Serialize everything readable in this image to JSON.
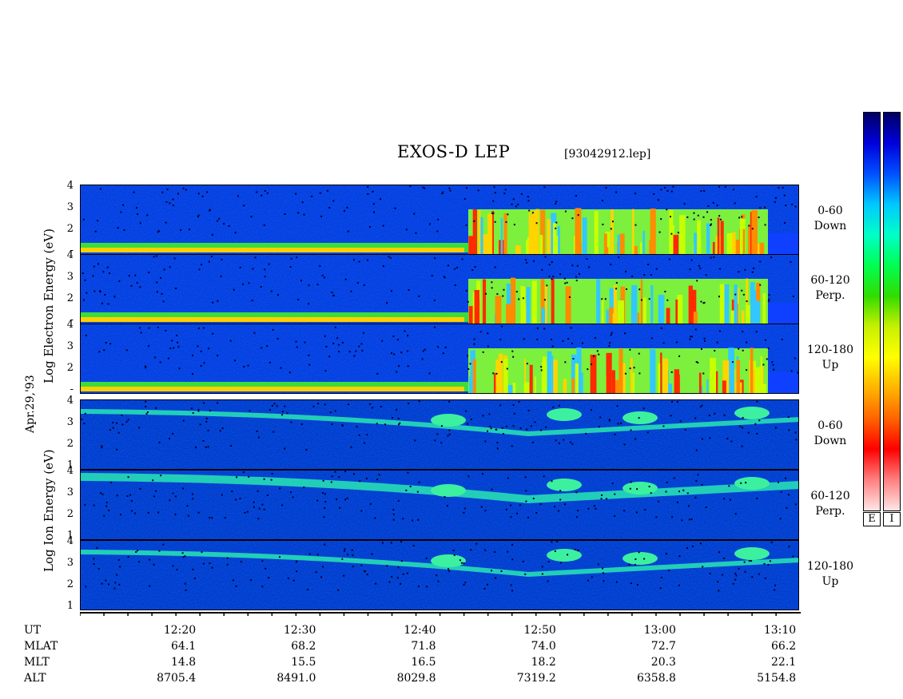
{
  "header": {
    "title": "EXOS-D LEP",
    "file": "[93042912.lep]"
  },
  "date_label": "Apr.29,'93",
  "electron_axis_label": "Log  Electron  Energy (eV)",
  "ion_axis_label": "Log   Ion  Energy (eV)",
  "panel_ticks": {
    "electron": [
      "4",
      "3",
      "2",
      "-"
    ],
    "ion": [
      "4",
      "3",
      "2",
      "1"
    ]
  },
  "panels": [
    {
      "id": "e-down",
      "species": "electron",
      "pitch": "0-60",
      "dir": "Down"
    },
    {
      "id": "e-perp",
      "species": "electron",
      "pitch": "60-120",
      "dir": "Perp."
    },
    {
      "id": "e-up",
      "species": "electron",
      "pitch": "120-180",
      "dir": "Up"
    },
    {
      "id": "i-down",
      "species": "ion",
      "pitch": "0-60",
      "dir": "Down"
    },
    {
      "id": "i-perp",
      "species": "ion",
      "pitch": "60-120",
      "dir": "Perp."
    },
    {
      "id": "i-up",
      "species": "ion",
      "pitch": "120-180",
      "dir": "Up"
    }
  ],
  "colorbar": {
    "labels": [
      "E",
      "I"
    ],
    "colors": [
      "#000064",
      "#0000dc",
      "#0050ff",
      "#00c8ff",
      "#00ffc8",
      "#00ff50",
      "#32dc00",
      "#c8f000",
      "#ffff00",
      "#ffb400",
      "#ff6400",
      "#ff0000",
      "#ff8080",
      "#ffe6e6"
    ]
  },
  "row_labels": [
    "UT",
    "MLAT",
    "MLT",
    "ALT"
  ],
  "chart_data": {
    "type": "heatmap",
    "title": "EXOS-D LEP",
    "xlabel": "UT",
    "ylabel": "Log Energy (eV)",
    "x_range": [
      "12:11",
      "13:10"
    ],
    "y_range": [
      0.5,
      4.1
    ],
    "log_scale_y": true,
    "grid": false,
    "columns": [
      {
        "ut": "12:20",
        "mlat": "64.1",
        "mlt": "14.8",
        "alt": "8705.4"
      },
      {
        "ut": "12:30",
        "mlat": "68.2",
        "mlt": "15.5",
        "alt": "8491.0"
      },
      {
        "ut": "12:40",
        "mlat": "71.8",
        "mlt": "16.5",
        "alt": "8029.8"
      },
      {
        "ut": "12:50",
        "mlat": "74.0",
        "mlt": "18.2",
        "alt": "7319.2"
      },
      {
        "ut": "13:00",
        "mlat": "72.7",
        "mlt": "20.3",
        "alt": "6358.8"
      },
      {
        "ut": "13:10",
        "mlat": "66.2",
        "mlt": "22.1",
        "alt": "5154.8"
      }
    ]
  }
}
